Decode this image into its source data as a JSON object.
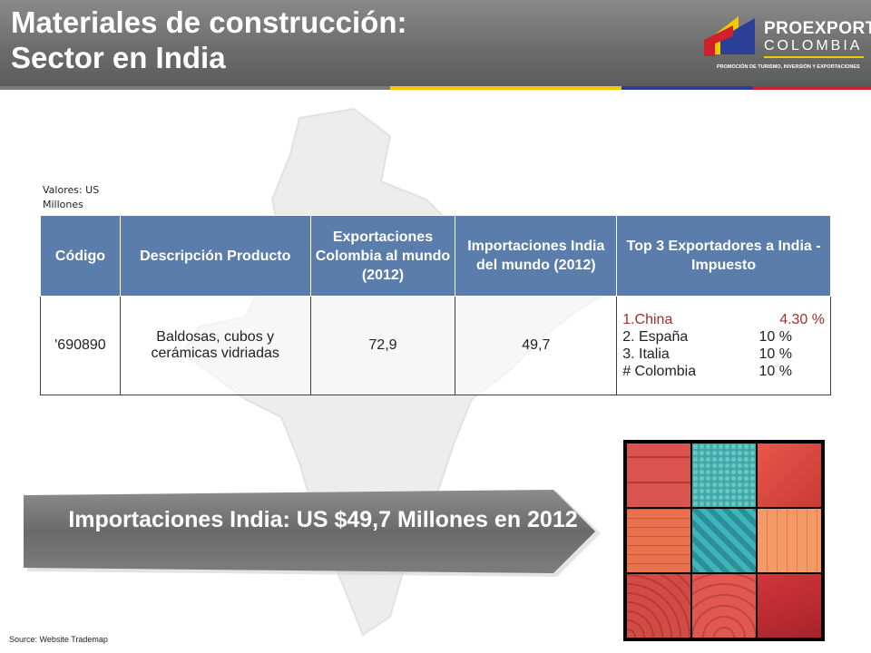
{
  "header": {
    "title_line1": "Materiales de construcción:",
    "title_line2": "Sector en India"
  },
  "logo": {
    "name": "PROEXPORT",
    "country": "COLOMBIA",
    "tagline": "PROMOCIÓN DE TURISMO, INVERSIÓN Y EXPORTACIONES"
  },
  "units_note": "Valores: US Millones",
  "table": {
    "headers": [
      "Código",
      "Descripción Producto",
      "Exportaciones Colombia al mundo (2012)",
      "Importaciones India del mundo (2012)",
      "Top 3 Exportadores a India - Impuesto"
    ],
    "row": {
      "code": "'690890",
      "description": "Baldosas, cubos y cerámicas vidriadas",
      "exports_colombia": "72,9",
      "imports_india": "49,7",
      "top3": [
        {
          "country": "1.China",
          "tariff": "4.30 %"
        },
        {
          "country": "2. España",
          "tariff": "10 %"
        },
        {
          "country": "3. Italia",
          "tariff": "10 %"
        },
        {
          "country": "# Colombia",
          "tariff": "10 %"
        }
      ]
    }
  },
  "banner": {
    "text": "Importaciones India: US $49,7 Millones en 2012"
  },
  "source": "Source: Website Trademap",
  "colors": {
    "header_bg": "#6d6d6d",
    "table_header": "#5b7dab",
    "banner": "#6a6a6a",
    "flag_yellow": "#f3c800",
    "flag_blue": "#2a3f95",
    "flag_red": "#d0202c"
  }
}
